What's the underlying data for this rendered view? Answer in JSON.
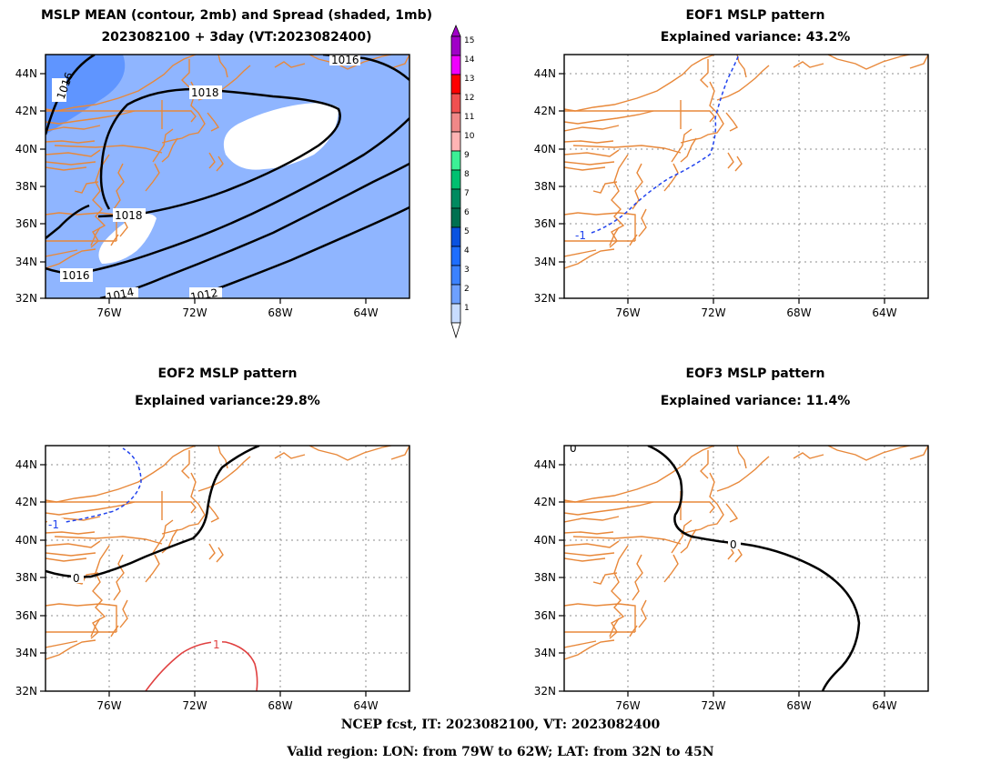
{
  "panels": [
    {
      "id": "mean",
      "title1": "MSLP MEAN (contour, 2mb) and Spread (shaded, 1mb)",
      "title2": "2023082100 + 3day (VT:2023082400)"
    },
    {
      "id": "eof1",
      "title1": "EOF1 MSLP pattern",
      "title2": "Explained variance: 43.2%"
    },
    {
      "id": "eof2",
      "title1": "EOF2 MSLP pattern",
      "title2": "Explained variance:29.8%"
    },
    {
      "id": "eof3",
      "title1": "EOF3 MSLP pattern",
      "title2": "Explained variance: 11.4%"
    }
  ],
  "axes": {
    "lat_ticks": [
      "44N",
      "42N",
      "40N",
      "38N",
      "36N",
      "34N",
      "32N"
    ],
    "lon_ticks": [
      "76W",
      "72W",
      "68W",
      "64W"
    ]
  },
  "contour_labels": {
    "mean": [
      "1016",
      "1016",
      "1018",
      "1018",
      "1016",
      "1014",
      "1012"
    ],
    "eof1": [
      "-1"
    ],
    "eof2": [
      "-1",
      "0",
      "1"
    ],
    "eof3": [
      "0",
      "0"
    ]
  },
  "colorbar": {
    "levels": [
      "15",
      "14",
      "13",
      "12",
      "11",
      "10",
      "9",
      "8",
      "7",
      "6",
      "5",
      "4",
      "3",
      "2",
      "1"
    ],
    "colors": [
      "#a000c8",
      "#f000ff",
      "#ff0000",
      "#f05050",
      "#f08888",
      "#ffb4b4",
      "#3cf096",
      "#00c070",
      "#008a60",
      "#007050",
      "#0a52e0",
      "#1e6eff",
      "#3c82ff",
      "#6ea0ff",
      "#c8dcff"
    ]
  },
  "colors": {
    "coast": "#e8883a",
    "grid": "#8c8c8c",
    "negative_contour": "#2244ee",
    "positive_contour": "#e04040",
    "spread_1": "#ffffff",
    "spread_2": "#8fb5ff",
    "spread_3": "#5f95ff"
  },
  "footer": {
    "line1": "NCEP fcst, IT: 2023082100, VT: 2023082400",
    "line2": "Valid region: LON: from 79W to 62W; LAT: from 32N to 45N"
  }
}
